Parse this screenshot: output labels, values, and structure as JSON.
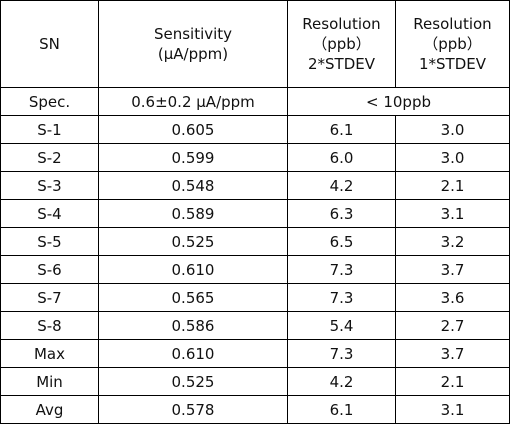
{
  "table": {
    "header": [
      [
        "SN"
      ],
      [
        "Sensitivity",
        "(μA/ppm)"
      ],
      [
        "Resolution",
        "（ppb）",
        "2*STDEV"
      ],
      [
        "Resolution",
        "（ppb）",
        "1*STDEV"
      ]
    ],
    "spec": [
      "Spec.",
      "0.6±0.2 μA/ppm",
      "< 10ppb"
    ],
    "rows": [
      [
        "S-1",
        "0.605",
        "6.1",
        "3.0"
      ],
      [
        "S-2",
        "0.599",
        "6.0",
        "3.0"
      ],
      [
        "S-3",
        "0.548",
        "4.2",
        "2.1"
      ],
      [
        "S-4",
        "0.589",
        "6.3",
        "3.1"
      ],
      [
        "S-5",
        "0.525",
        "6.5",
        "3.2"
      ],
      [
        "S-6",
        "0.610",
        "7.3",
        "3.7"
      ],
      [
        "S-7",
        "0.565",
        "7.3",
        "3.6"
      ],
      [
        "S-8",
        "0.586",
        "5.4",
        "2.7"
      ],
      [
        "Max",
        "0.610",
        "7.3",
        "3.7"
      ],
      [
        "Min",
        "0.525",
        "4.2",
        "2.1"
      ],
      [
        "Avg",
        "0.578",
        "6.1",
        "3.1"
      ]
    ]
  }
}
